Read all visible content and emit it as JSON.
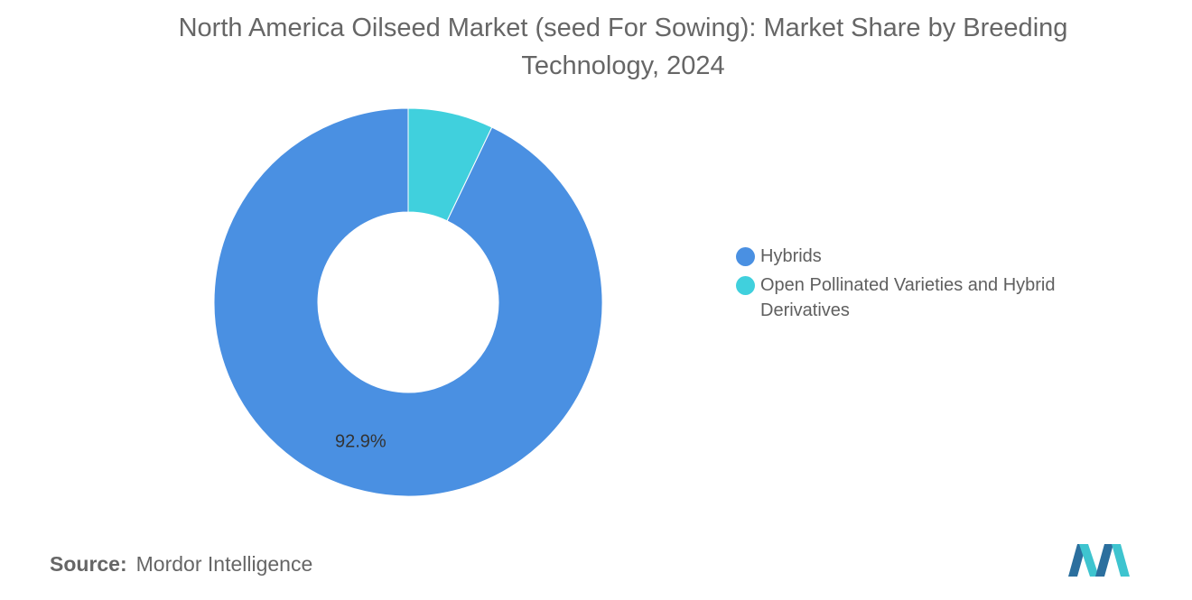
{
  "chart_data": {
    "type": "pie",
    "donut": true,
    "title_line1": "North America Oilseed Market (seed For Sowing): Market Share by Breeding",
    "title_line2": "Technology, 2024",
    "series": [
      {
        "name": "Hybrids",
        "value": 92.9,
        "color": "#4a90e2",
        "data_label": "92.9%"
      },
      {
        "name": "Open Pollinated Varieties and Hybrid Derivatives",
        "value": 7.1,
        "color": "#40d0dd"
      }
    ],
    "legend": {
      "placement": "right",
      "items": [
        {
          "label": "Hybrids",
          "color": "#4a90e2"
        },
        {
          "label": "Open Pollinated Varieties and Hybrid",
          "label_cont": "Derivatives",
          "color": "#40d0dd"
        }
      ]
    }
  },
  "footer": {
    "source_key": "Source:",
    "source_value": "Mordor Intelligence"
  },
  "logo": {
    "icon": "mordor-intelligence-logo",
    "colors": [
      "#2b6f9e",
      "#3ec4cf"
    ]
  }
}
